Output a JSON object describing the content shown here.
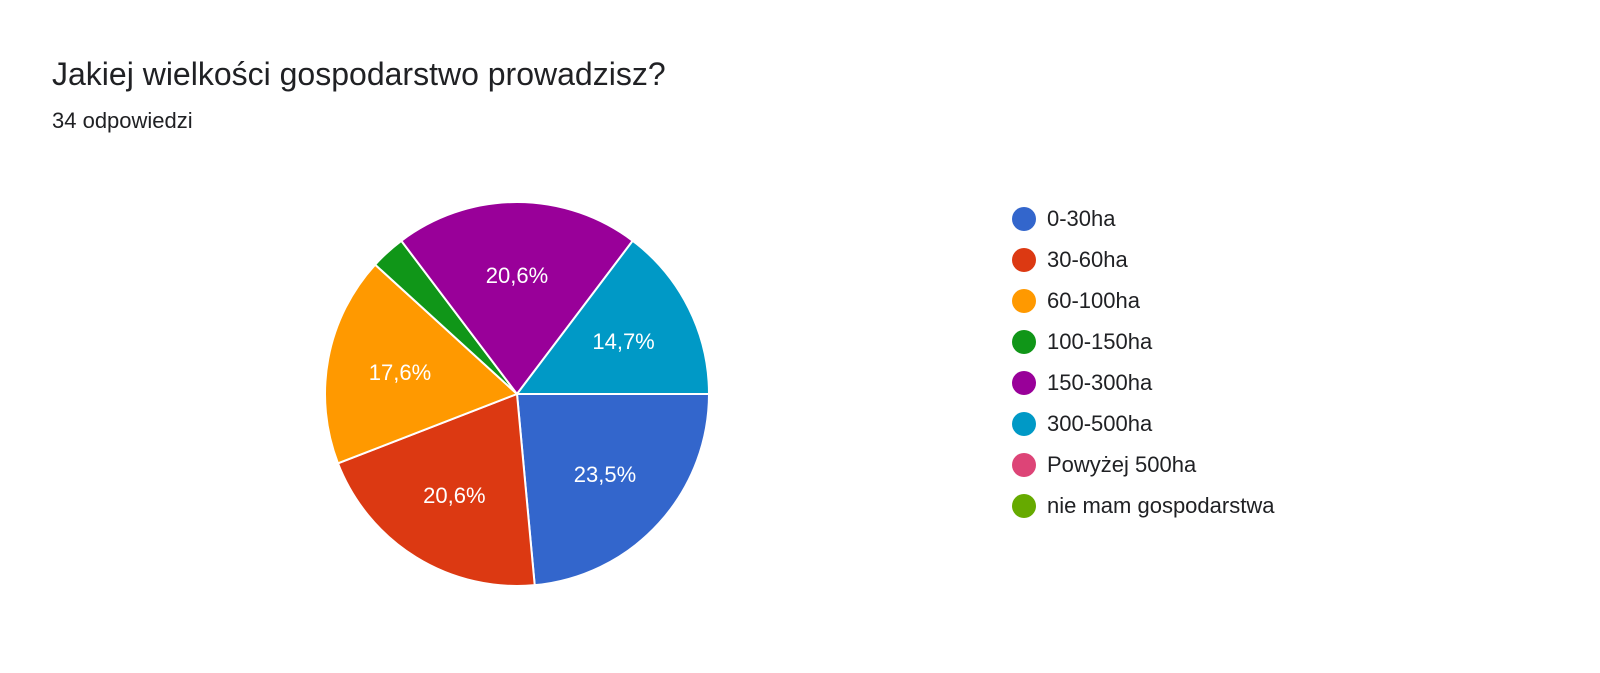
{
  "header": {
    "title": "Jakiej wielkości gospodarstwo prowadzisz?",
    "subtitle": "34 odpowiedzi"
  },
  "chart_data": {
    "type": "pie",
    "title": "Jakiej wielkości gospodarstwo prowadzisz?",
    "subtitle": "34 odpowiedzi",
    "total": 34,
    "legend_position": "right",
    "categories": [
      "0-30ha",
      "30-60ha",
      "60-100ha",
      "100-150ha",
      "150-300ha",
      "300-500ha",
      "Powyżej 500ha",
      "nie mam gospodarstwa"
    ],
    "values": [
      8,
      7,
      6,
      1,
      7,
      5,
      0,
      0
    ],
    "percent_labels": [
      "23,5%",
      "20,6%",
      "17,6%",
      "",
      "20,6%",
      "14,7%",
      "",
      ""
    ],
    "colors": [
      "#3366cc",
      "#dc3912",
      "#ff9900",
      "#109618",
      "#990099",
      "#0099c6",
      "#dd4477",
      "#66aa00"
    ]
  }
}
